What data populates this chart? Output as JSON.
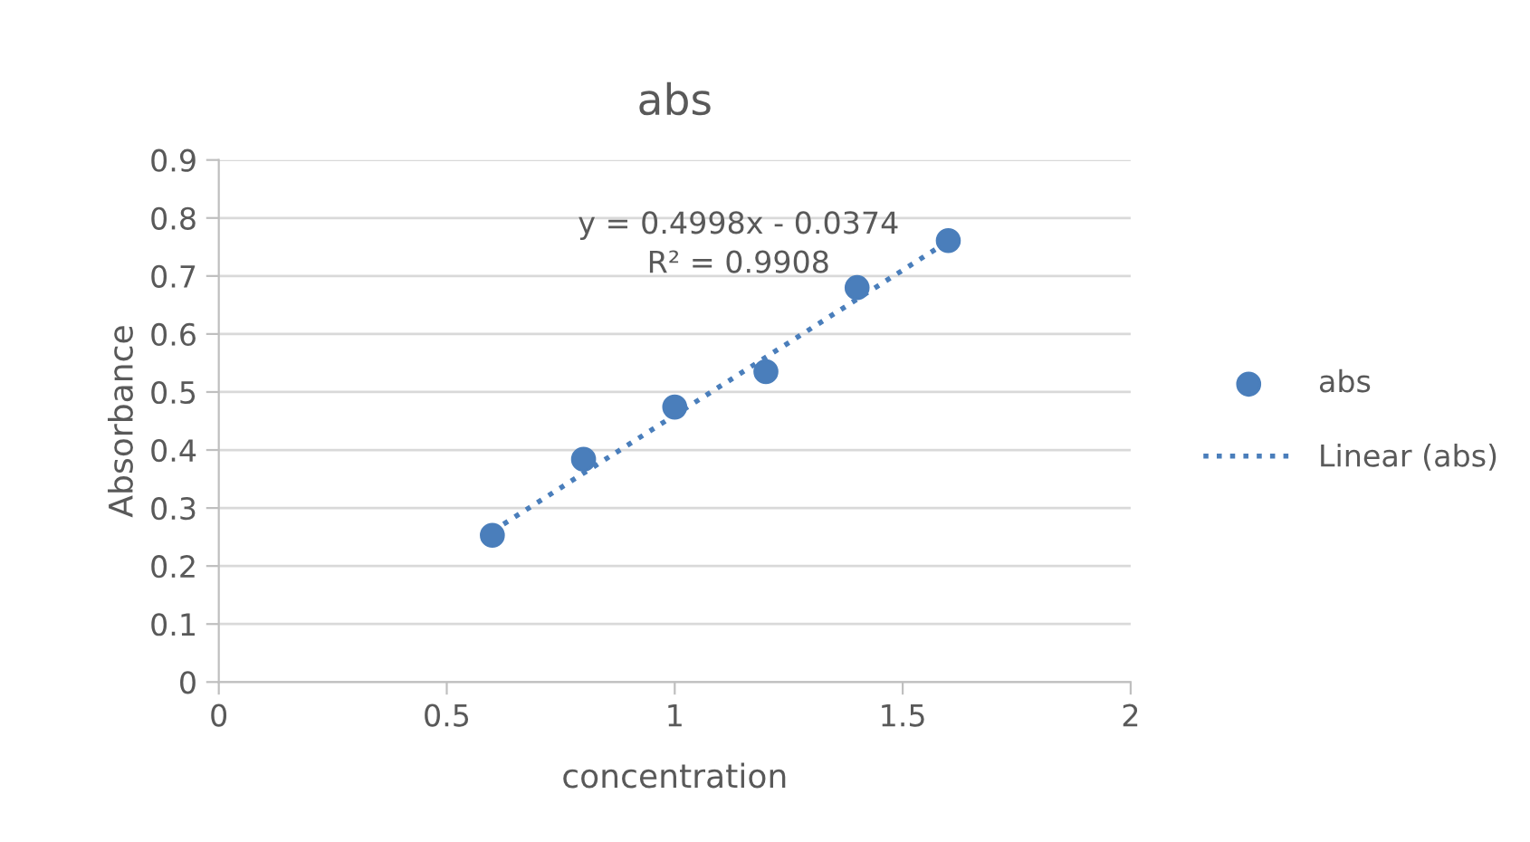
{
  "chart_data": {
    "type": "scatter",
    "title": "abs",
    "xlabel": "concentration",
    "ylabel": "Absorbance",
    "x": [
      0.6,
      0.8,
      1.0,
      1.2,
      1.4,
      1.6
    ],
    "series": [
      {
        "name": "abs",
        "color": "#4a7ebb",
        "marker": "circle",
        "values": [
          0.253,
          0.384,
          0.474,
          0.535,
          0.68,
          0.761
        ]
      },
      {
        "name": "Linear (abs)",
        "type": "line",
        "color": "#4a7ebb",
        "line_style": "dotted",
        "marker": "none",
        "x": [
          0.6,
          1.6
        ],
        "values": [
          0.26,
          0.76
        ]
      }
    ],
    "annotations": [
      "y = 0.4998x - 0.0374",
      "R² = 0.9908"
    ],
    "xlim": [
      0,
      2
    ],
    "xticks": [
      0,
      0.5,
      1,
      1.5,
      2
    ],
    "ylim": [
      0,
      0.9
    ],
    "yticks": [
      0,
      0.1,
      0.2,
      0.3,
      0.4,
      0.5,
      0.6,
      0.7,
      0.8,
      0.9
    ],
    "grid": "y",
    "legend": "right"
  }
}
